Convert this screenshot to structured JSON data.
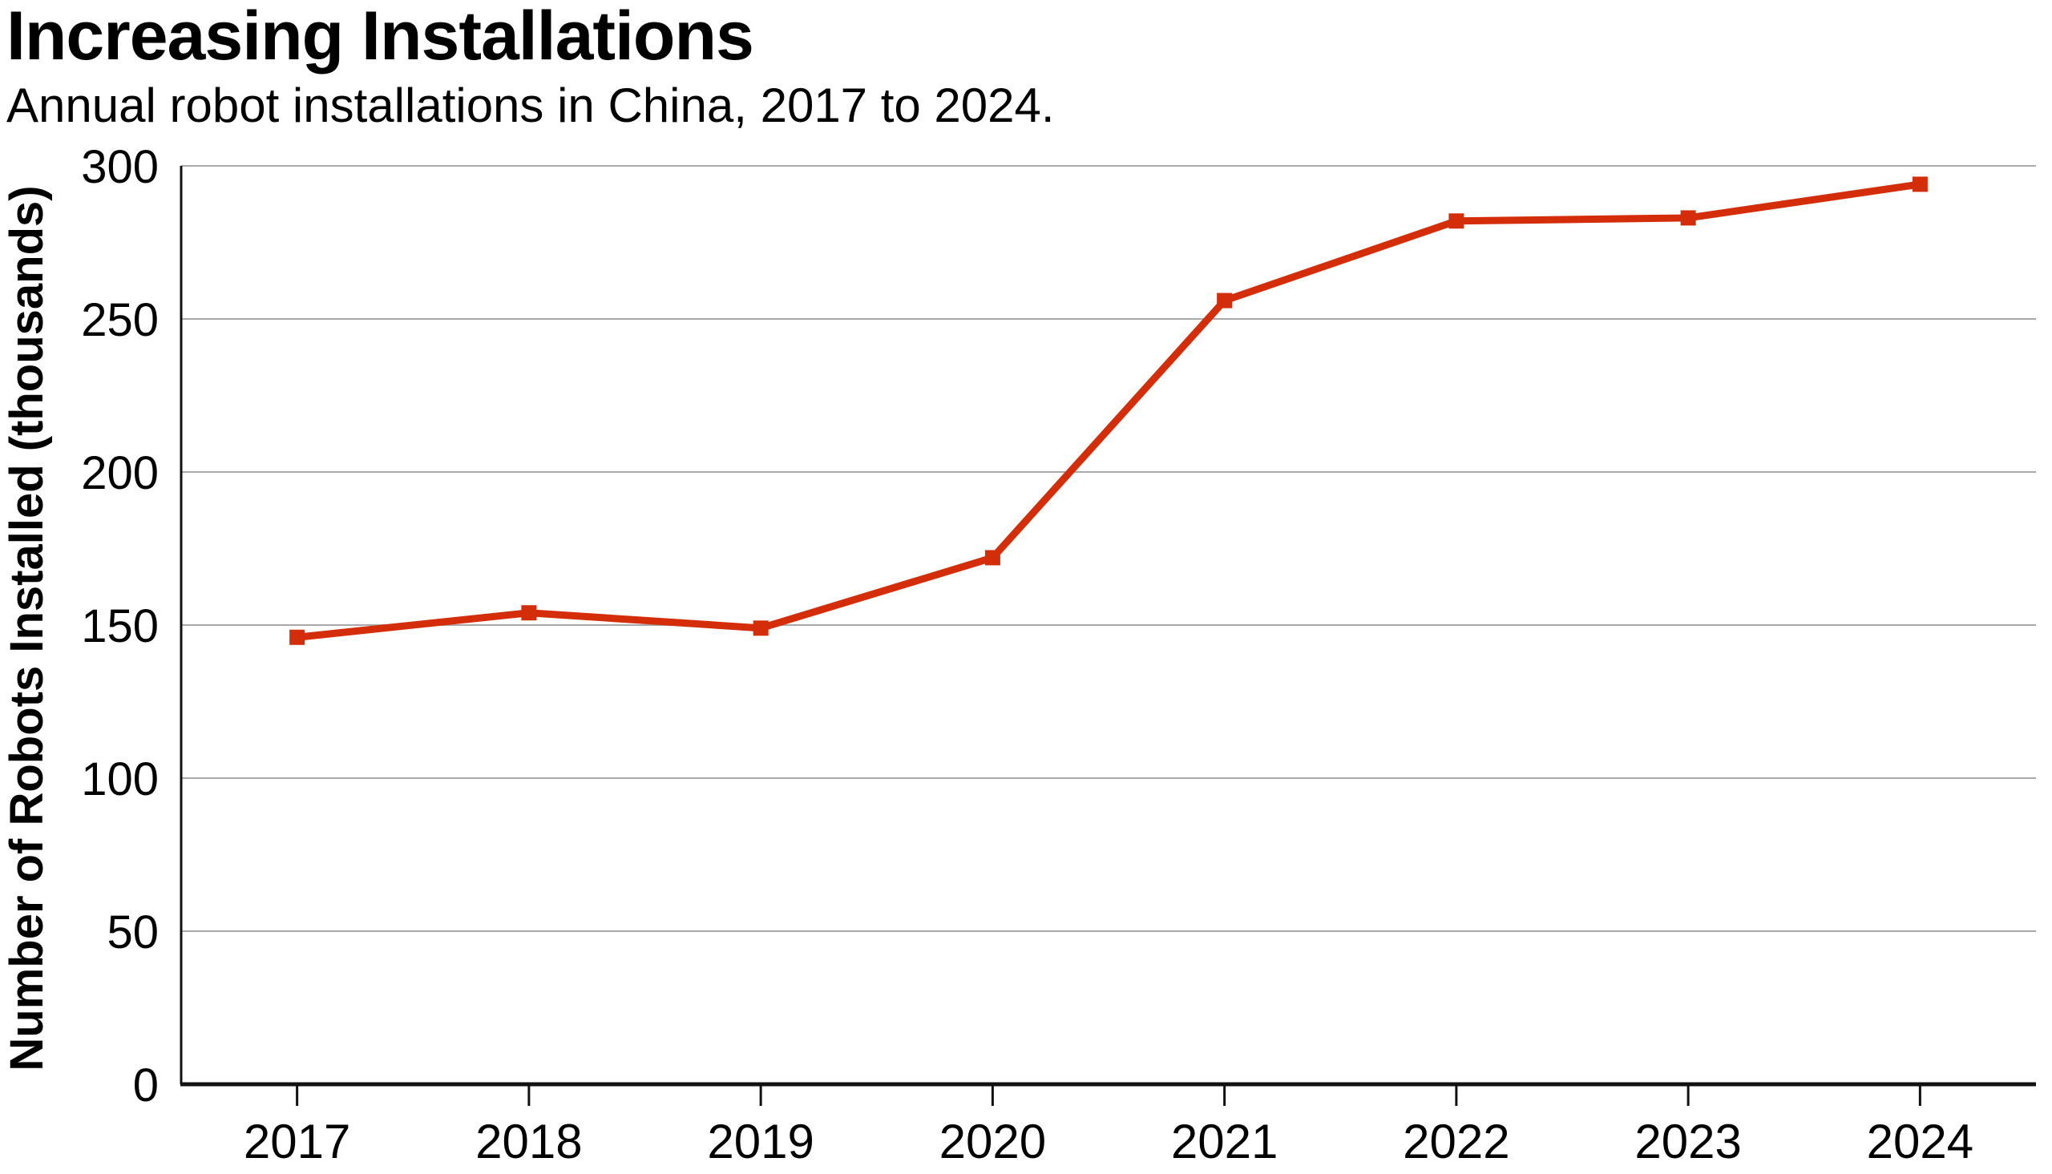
{
  "header": {
    "title": "Increasing Installations",
    "subtitle": "Annual robot installations in China, 2017 to 2024."
  },
  "chart_data": {
    "type": "line",
    "title": "Increasing Installations",
    "subtitle": "Annual robot installations in China, 2017 to 2024.",
    "categories": [
      "2017",
      "2018",
      "2019",
      "2020",
      "2021",
      "2022",
      "2023",
      "2024"
    ],
    "values": [
      146,
      154,
      149,
      172,
      256,
      282,
      283,
      294
    ],
    "xlabel": "",
    "ylabel": "Number of Robots Installed (thousands)",
    "ylim": [
      0,
      300
    ],
    "yticks": [
      0,
      50,
      100,
      150,
      200,
      250,
      300
    ],
    "grid": true,
    "legend": "none",
    "line_color": "#d42d09",
    "marker_shape": "square",
    "grid_color": "#a9a9a9",
    "axis_color": "#111111",
    "text_color": "#000000",
    "background_color": "#ffffff"
  }
}
